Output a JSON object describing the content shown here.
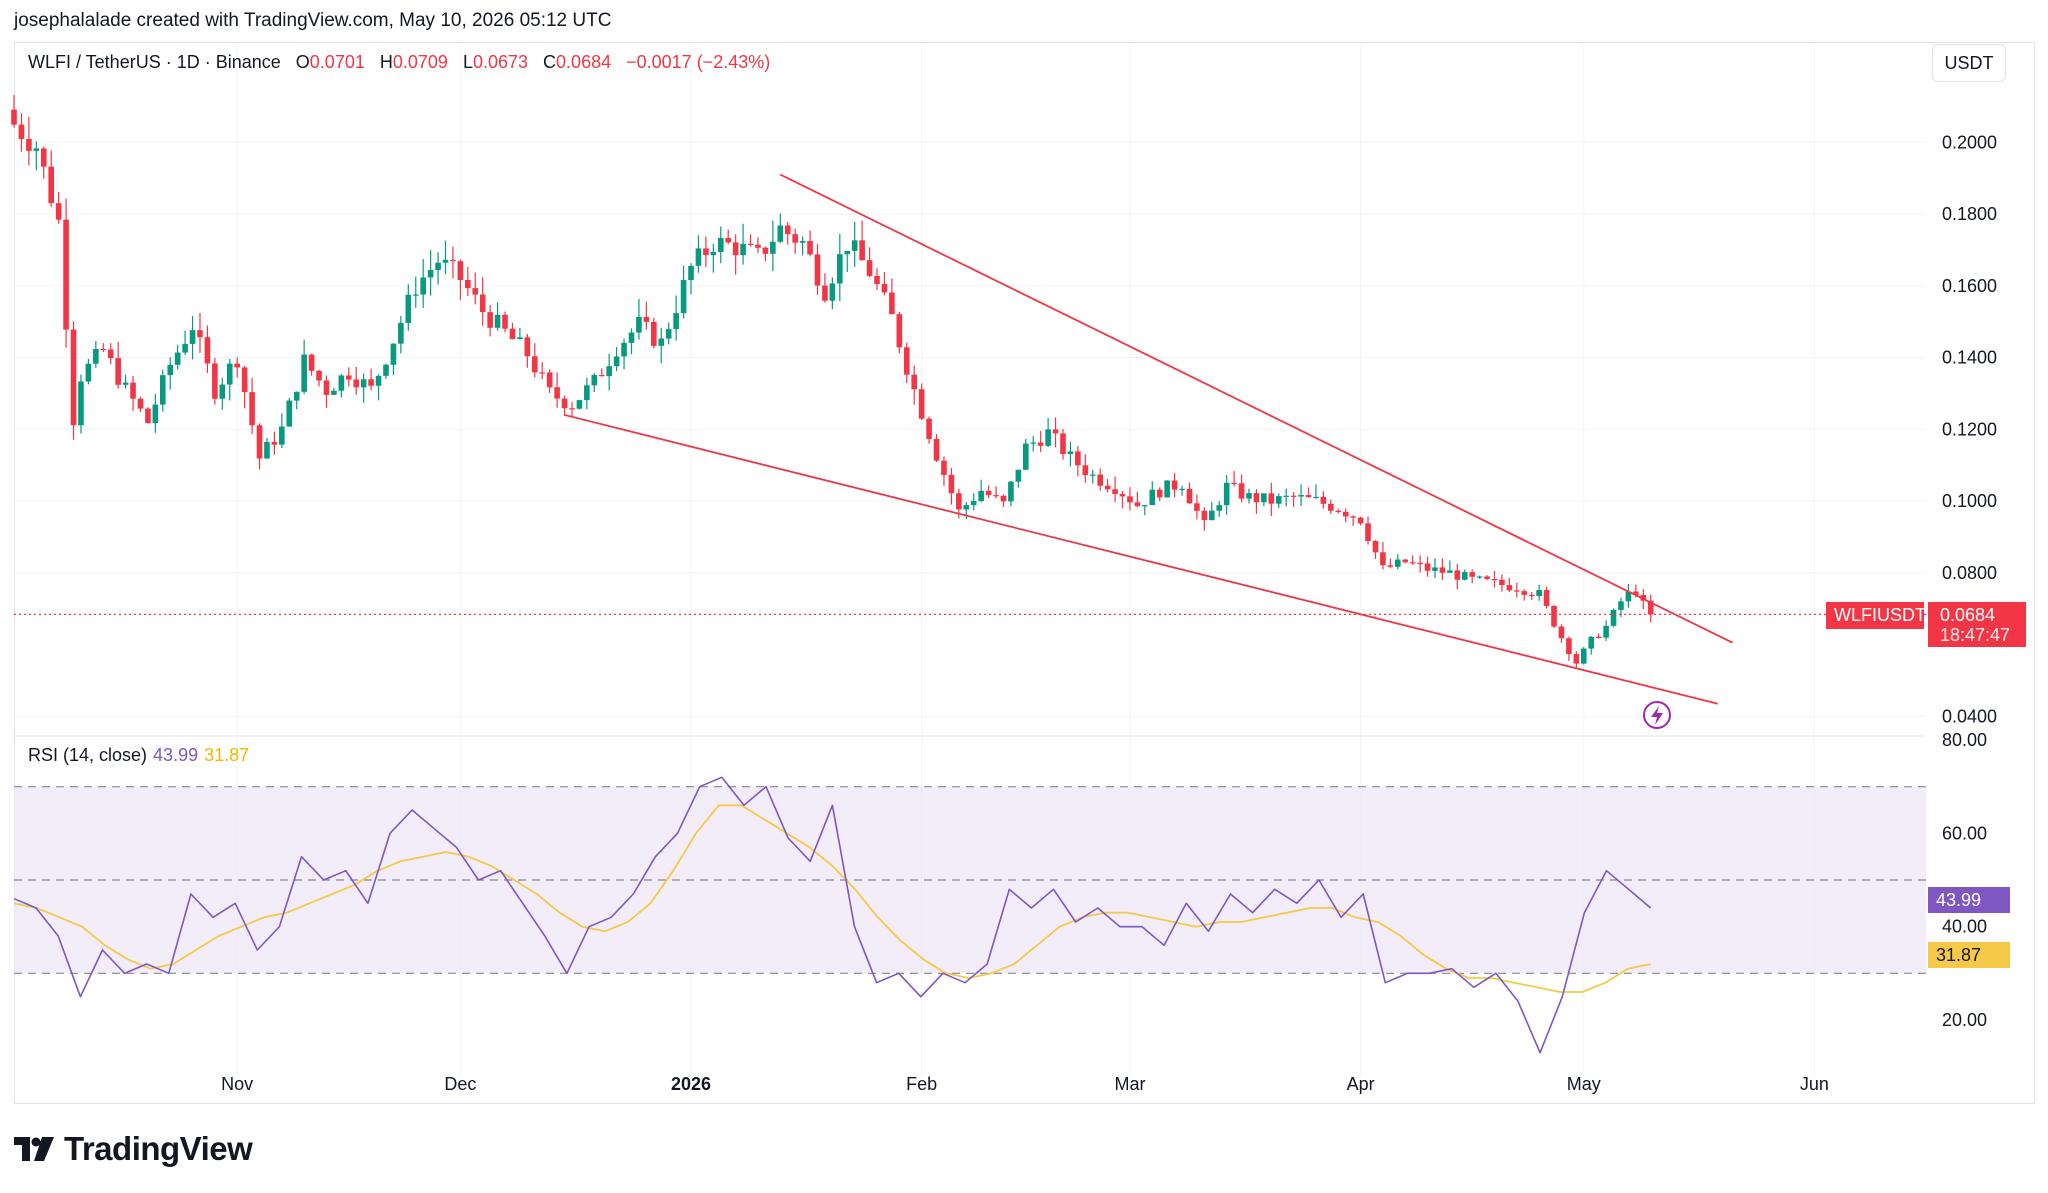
{
  "credit": "josephalalade created with TradingView.com, May 10, 2026 05:12 UTC",
  "legend": {
    "symbol": "WLFI / TetherUS · 1D · Binance",
    "o_label": "O",
    "o_value": "0.0701",
    "h_label": "H",
    "h_value": "0.0709",
    "l_label": "L",
    "l_value": "0.0673",
    "c_label": "C",
    "c_value": "0.0684",
    "change": "−0.0017 (−2.43%)"
  },
  "unit_button": "USDT",
  "price_tag": {
    "symbol": "WLFIUSDT",
    "price": "0.0684",
    "countdown": "18:47:47"
  },
  "rsi_legend": {
    "name": "RSI (14, close)",
    "rsi": "43.99",
    "ma": "31.87"
  },
  "rsi_tags": {
    "rsi": "43.99",
    "ma": "31.87"
  },
  "brand": "TradingView",
  "colors": {
    "up": "#089981",
    "down": "#f23645",
    "rsi": "#7e57c2",
    "rsi_ma": "#f7c948",
    "trendline": "#f23645",
    "band": "#ede7f6"
  },
  "icons": {
    "alert": "lightning-icon",
    "logo": "tradingview-logo-icon"
  },
  "chart_data": [
    {
      "type": "candlestick",
      "title": "WLFI / TetherUS · 1D · Binance",
      "y_ticks": [
        "0.2000",
        "0.1800",
        "0.1600",
        "0.1400",
        "0.1200",
        "0.1000",
        "0.0800",
        "0.0400"
      ],
      "ylim": [
        0.0345,
        0.2235
      ],
      "x_ticks": [
        {
          "label": "Nov",
          "date": "2025-11-01"
        },
        {
          "label": "Dec",
          "date": "2025-12-01"
        },
        {
          "label": "2026",
          "date": "2026-01-01"
        },
        {
          "label": "Feb",
          "date": "2026-02-01"
        },
        {
          "label": "Mar",
          "date": "2026-03-01"
        },
        {
          "label": "Apr",
          "date": "2026-04-01"
        },
        {
          "label": "May",
          "date": "2026-05-01"
        },
        {
          "label": "Jun",
          "date": "2026-06-01"
        }
      ],
      "xlim": [
        "2025-10-02",
        "2026-06-16"
      ],
      "last_price": 0.0684,
      "closes": {
        "dates": [
          "2025-10-02",
          "2025-10-05",
          "2025-10-08",
          "2025-10-10",
          "2025-10-11",
          "2025-10-14",
          "2025-10-17",
          "2025-10-20",
          "2025-10-23",
          "2025-10-26",
          "2025-10-29",
          "2025-11-01",
          "2025-11-04",
          "2025-11-07",
          "2025-11-10",
          "2025-11-13",
          "2025-11-16",
          "2025-11-19",
          "2025-11-22",
          "2025-11-25",
          "2025-11-28",
          "2025-12-01",
          "2025-12-04",
          "2025-12-07",
          "2025-12-10",
          "2025-12-13",
          "2025-12-16",
          "2025-12-19",
          "2025-12-22",
          "2025-12-25",
          "2025-12-28",
          "2026-01-01",
          "2026-01-04",
          "2026-01-07",
          "2026-01-10",
          "2026-01-13",
          "2026-01-16",
          "2026-01-19",
          "2026-01-22",
          "2026-01-25",
          "2026-01-28",
          "2026-01-31",
          "2026-02-03",
          "2026-02-06",
          "2026-02-09",
          "2026-02-12",
          "2026-02-15",
          "2026-02-18",
          "2026-02-21",
          "2026-02-24",
          "2026-02-27",
          "2026-03-02",
          "2026-03-05",
          "2026-03-08",
          "2026-03-11",
          "2026-03-14",
          "2026-03-17",
          "2026-03-20",
          "2026-03-23",
          "2026-03-26",
          "2026-03-29",
          "2026-04-01",
          "2026-04-04",
          "2026-04-07",
          "2026-04-10",
          "2026-04-13",
          "2026-04-16",
          "2026-04-19",
          "2026-04-22",
          "2026-04-25",
          "2026-04-28",
          "2026-04-30",
          "2026-05-02",
          "2026-05-04",
          "2026-05-06",
          "2026-05-07",
          "2026-05-08",
          "2026-05-09",
          "2026-05-10"
        ],
        "values": [
          0.205,
          0.199,
          0.178,
          0.123,
          0.135,
          0.142,
          0.131,
          0.122,
          0.138,
          0.149,
          0.131,
          0.14,
          0.112,
          0.12,
          0.139,
          0.131,
          0.136,
          0.131,
          0.145,
          0.16,
          0.167,
          0.162,
          0.153,
          0.147,
          0.141,
          0.13,
          0.127,
          0.133,
          0.143,
          0.149,
          0.144,
          0.165,
          0.172,
          0.171,
          0.168,
          0.176,
          0.172,
          0.159,
          0.172,
          0.164,
          0.151,
          0.131,
          0.113,
          0.097,
          0.103,
          0.099,
          0.115,
          0.119,
          0.112,
          0.107,
          0.104,
          0.099,
          0.103,
          0.105,
          0.093,
          0.104,
          0.101,
          0.1,
          0.101,
          0.1,
          0.098,
          0.095,
          0.081,
          0.083,
          0.081,
          0.08,
          0.078,
          0.077,
          0.076,
          0.074,
          0.062,
          0.055,
          0.061,
          0.065,
          0.072,
          0.074,
          0.075,
          0.071,
          0.0684
        ]
      },
      "trendlines": [
        {
          "from": {
            "date": "2026-01-13",
            "price": 0.191
          },
          "to": {
            "date": "2026-05-21",
            "price": 0.0605
          }
        },
        {
          "from": {
            "date": "2025-12-15",
            "price": 0.124
          },
          "to": {
            "date": "2026-05-19",
            "price": 0.0435
          }
        }
      ]
    },
    {
      "type": "line",
      "title": "RSI (14, close)",
      "y_ticks": [
        "80.00",
        "60.00",
        "40.00",
        "20.00"
      ],
      "ylim": [
        5,
        80
      ],
      "bands": [
        30,
        50,
        70
      ],
      "series": [
        {
          "name": "RSI",
          "values": [
            46,
            44,
            38,
            25,
            35,
            30,
            32,
            30,
            47,
            42,
            45,
            35,
            40,
            55,
            50,
            52,
            45,
            60,
            65,
            61,
            57,
            50,
            52,
            45,
            38,
            30,
            40,
            42,
            47,
            55,
            60,
            70,
            72,
            66,
            70,
            59,
            54,
            66,
            40,
            28,
            30,
            25,
            30,
            28,
            32,
            48,
            44,
            48,
            41,
            44,
            40,
            40,
            36,
            45,
            39,
            47,
            43,
            48,
            45,
            50,
            42,
            47,
            28,
            30,
            30,
            31,
            27,
            30,
            24,
            13,
            25,
            43,
            52,
            48,
            44
          ],
          "x_range": [
            "2025-10-02",
            "2026-05-10"
          ]
        },
        {
          "name": "RSI MA",
          "values": [
            45,
            44,
            42,
            40,
            36,
            33,
            31,
            32,
            35,
            38,
            40,
            42,
            43,
            45,
            47,
            49,
            52,
            54,
            55,
            56,
            55,
            53,
            50,
            47,
            43,
            40,
            39,
            41,
            45,
            52,
            60,
            66,
            66,
            63,
            60,
            57,
            53,
            48,
            42,
            37,
            33,
            30,
            29,
            30,
            32,
            36,
            40,
            42,
            43,
            43,
            42,
            41,
            40,
            41,
            41,
            42,
            43,
            44,
            44,
            42,
            41,
            38,
            34,
            31,
            29,
            29,
            28,
            27,
            26,
            26,
            28,
            31,
            32
          ],
          "x_range": [
            "2025-10-02",
            "2026-05-10"
          ]
        }
      ],
      "last_values": {
        "RSI": 43.99,
        "RSI MA": 31.87
      }
    }
  ]
}
